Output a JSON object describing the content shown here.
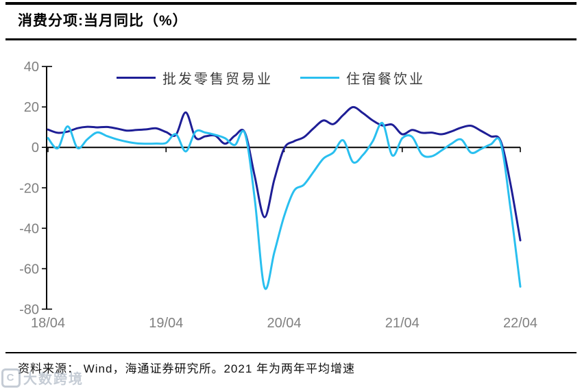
{
  "page": {
    "title": "消费分项:当月同比（%）"
  },
  "legend": [
    {
      "label": "批发零售贸易业",
      "color": "#1e1e96"
    },
    {
      "label": "住宿餐饮业",
      "color": "#29bfef"
    }
  ],
  "footer": {
    "source_text": "资料来源： Wind，海通证券研究所。2021 年为两年平均增速"
  },
  "watermark": {
    "logo": "C",
    "text": "大数跨境"
  },
  "colors": {
    "axis": "#000000",
    "tick_label": "#808080",
    "series_navy": "#1e1e96",
    "series_cyan": "#29bfef"
  },
  "chart_data": {
    "type": "line",
    "title": "消费分项:当月同比（%）",
    "xlabel": "",
    "ylabel": "",
    "ylim": [
      -80,
      40
    ],
    "y_ticks": [
      40,
      20,
      0,
      -20,
      -40,
      -60,
      -80
    ],
    "x_tick_labels": [
      "18/04",
      "19/04",
      "20/04",
      "21/04",
      "22/04"
    ],
    "grid": false,
    "legend_position": "top",
    "smoothing": true,
    "x": [
      "18/04",
      "18/05",
      "18/06",
      "18/07",
      "18/08",
      "18/09",
      "18/10",
      "18/11",
      "18/12",
      "19/01",
      "19/02",
      "19/03",
      "19/04",
      "19/05",
      "19/06",
      "19/07",
      "19/08",
      "19/09",
      "19/10",
      "19/11",
      "19/12",
      "20/01",
      "20/02",
      "20/03",
      "20/04",
      "20/05",
      "20/06",
      "20/07",
      "20/08",
      "20/09",
      "20/10",
      "20/11",
      "20/12",
      "21/01",
      "21/02",
      "21/03",
      "21/04",
      "21/05",
      "21/06",
      "21/07",
      "21/08",
      "21/09",
      "21/10",
      "21/11",
      "21/12",
      "22/01",
      "22/02",
      "22/03",
      "22/04"
    ],
    "series": [
      {
        "name": "批发零售贸易业",
        "color": "#1e1e96",
        "values": [
          8.8,
          7.2,
          7.8,
          9.5,
          10.2,
          9.9,
          10.1,
          9.3,
          8.3,
          8.6,
          8.9,
          9.4,
          7.6,
          6.2,
          17.3,
          4.8,
          5.5,
          5.8,
          1.8,
          5.8,
          7.4,
          -14.0,
          -34.5,
          -16.0,
          -0.5,
          3.0,
          5.0,
          9.5,
          13.3,
          11.5,
          16.0,
          19.9,
          17.0,
          13.3,
          10.8,
          11.2,
          6.5,
          8.6,
          7.2,
          7.3,
          6.5,
          7.9,
          9.8,
          10.7,
          8.2,
          5.5,
          3.2,
          -18.0,
          -46.0
        ]
      },
      {
        "name": "住宿餐饮业",
        "color": "#29bfef",
        "values": [
          4.6,
          -0.4,
          10.4,
          -0.3,
          4.0,
          7.4,
          5.6,
          4.0,
          2.8,
          2.0,
          1.8,
          1.9,
          2.2,
          6.5,
          -2.0,
          7.8,
          7.3,
          6.2,
          4.5,
          1.2,
          7.0,
          -25.0,
          -69.2,
          -52.0,
          -34.0,
          -21.5,
          -18.5,
          -12.0,
          -5.5,
          -2.5,
          3.5,
          -7.3,
          -3.8,
          3.0,
          12.0,
          -4.0,
          4.5,
          5.2,
          -3.5,
          -4.4,
          -1.5,
          1.8,
          3.9,
          -2.6,
          -0.8,
          1.5,
          2.3,
          -30.0,
          -68.9
        ]
      }
    ]
  }
}
